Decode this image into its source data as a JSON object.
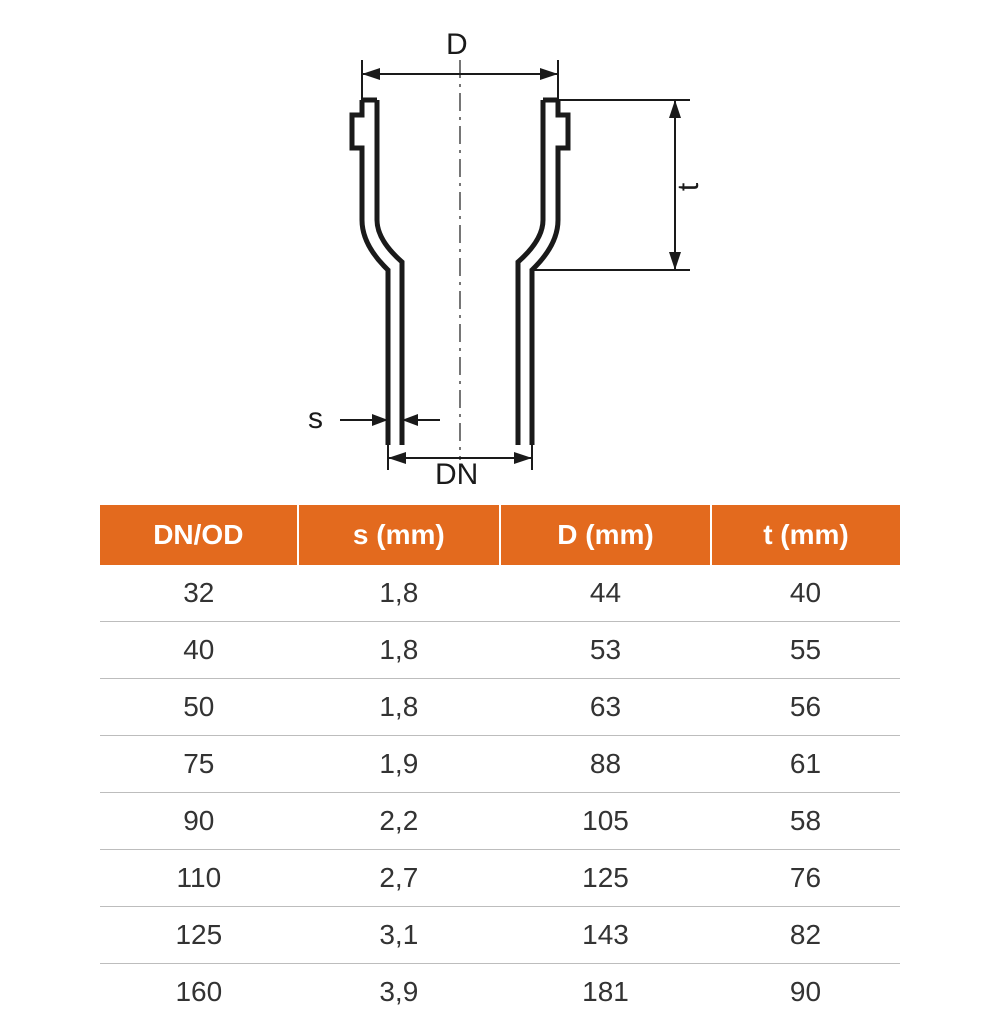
{
  "diagram": {
    "labels": {
      "D": "D",
      "t": "t",
      "s": "s",
      "DN": "DN"
    },
    "colors": {
      "stroke": "#1a1a1a",
      "fill": "#ffffff",
      "centerline": "#1a1a1a"
    },
    "stroke_width_outline": 5,
    "stroke_width_dim": 2,
    "stroke_width_center": 1
  },
  "table": {
    "header_bg": "#e36a1e",
    "header_text_color": "#ffffff",
    "cell_text_color": "#333333",
    "border_color": "#bdbdbd",
    "columns": [
      "DN/OD",
      "s (mm)",
      "D (mm)",
      "t (mm)"
    ],
    "rows": [
      [
        "32",
        "1,8",
        "44",
        "40"
      ],
      [
        "40",
        "1,8",
        "53",
        "55"
      ],
      [
        "50",
        "1,8",
        "63",
        "56"
      ],
      [
        "75",
        "1,9",
        "88",
        "61"
      ],
      [
        "90",
        "2,2",
        "105",
        "58"
      ],
      [
        "110",
        "2,7",
        "125",
        "76"
      ],
      [
        "125",
        "3,1",
        "143",
        "82"
      ],
      [
        "160",
        "3,9",
        "181",
        "90"
      ]
    ]
  }
}
